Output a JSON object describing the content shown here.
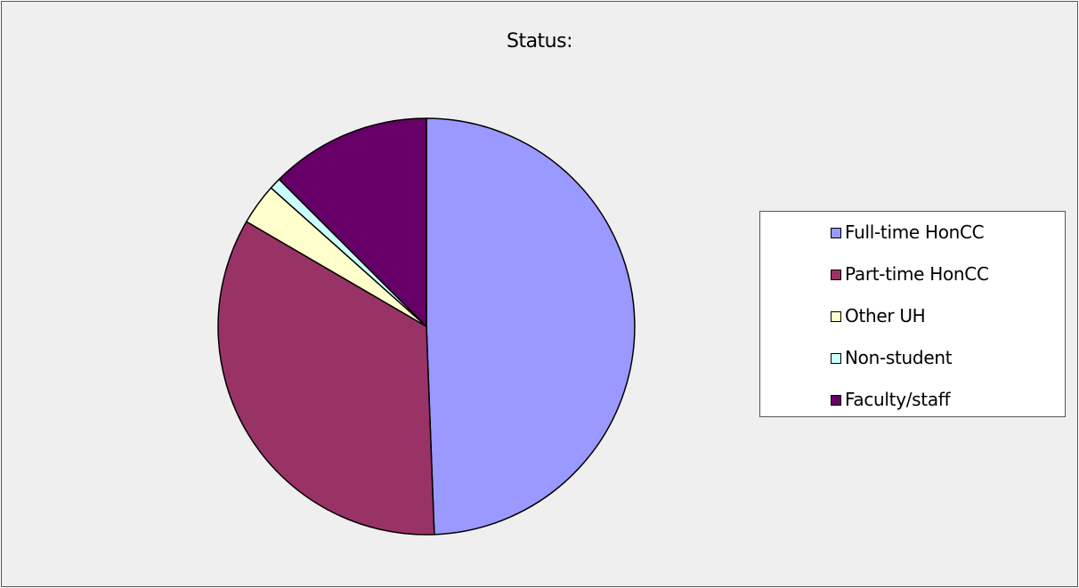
{
  "chart_data": {
    "type": "pie",
    "title": "Status:",
    "slices": [
      {
        "label": "Full-time HonCC",
        "value": 49.4,
        "color": "#9999ff"
      },
      {
        "label": "Part-time HonCC",
        "value": 34.0,
        "color": "#993366"
      },
      {
        "label": "Other UH",
        "value": 3.2,
        "color": "#ffffcc"
      },
      {
        "label": "Non-student",
        "value": 0.9,
        "color": "#ccffff"
      },
      {
        "label": "Faculty/staff",
        "value": 12.5,
        "color": "#660066"
      }
    ],
    "unit": "percent",
    "start_angle": "12 o'clock",
    "direction": "clockwise",
    "legend_position": "right",
    "background_color": "#efefef",
    "slice_border_color": "#000000"
  }
}
